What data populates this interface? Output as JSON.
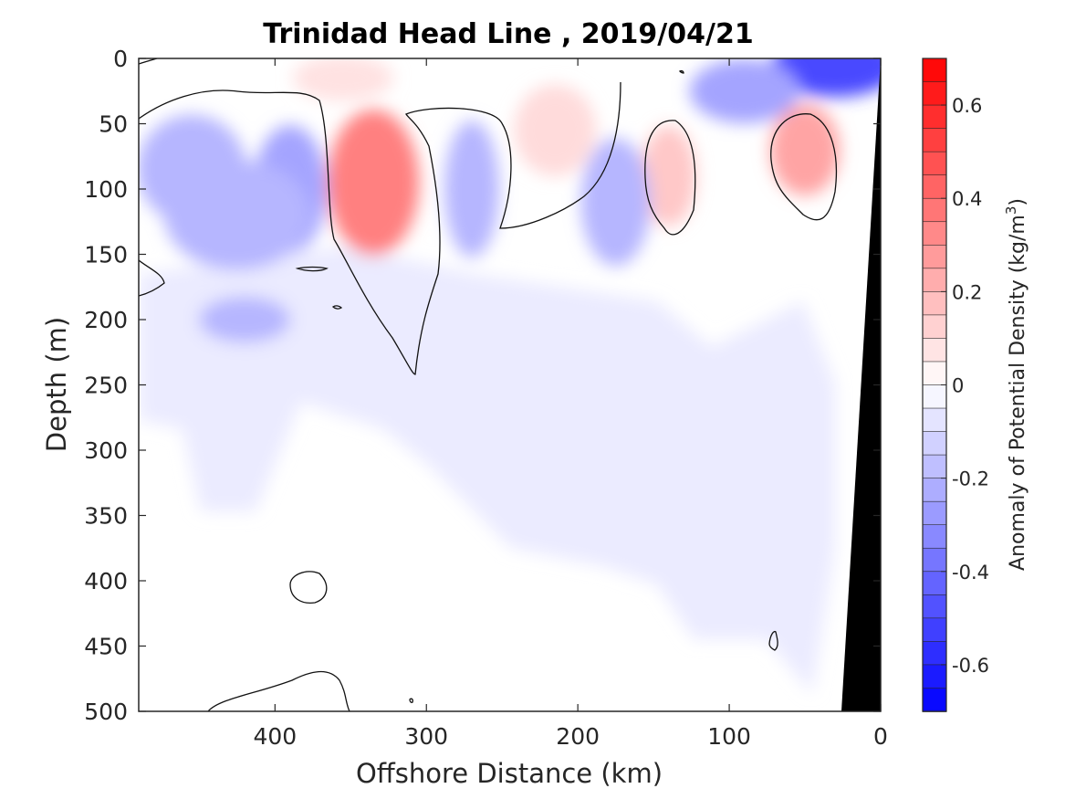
{
  "chart_data": {
    "type": "heatmap",
    "title": "Trinidad Head Line , 2019/04/21",
    "xlabel": "Offshore Distance (km)",
    "ylabel": "Depth (m)",
    "xlim": [
      490,
      0
    ],
    "ylim": [
      0,
      500
    ],
    "x_reversed": true,
    "y_reversed": true,
    "x_ticks": [
      "400",
      "300",
      "200",
      "100",
      "0"
    ],
    "x_tick_values": [
      400,
      300,
      200,
      100,
      0
    ],
    "y_ticks": [
      "0",
      "50",
      "100",
      "150",
      "200",
      "250",
      "300",
      "350",
      "400",
      "450",
      "500"
    ],
    "y_tick_values": [
      0,
      50,
      100,
      150,
      200,
      250,
      300,
      350,
      400,
      450,
      500
    ],
    "colorbar": {
      "label_main": "Anomaly of Potential Density (kg/m",
      "label_superscript": "3",
      "label_close": ")",
      "range": [
        -0.7,
        0.7
      ],
      "ticks": [
        "0.6",
        "0.4",
        "0.2",
        "0",
        "-0.2",
        "-0.4",
        "-0.6"
      ],
      "tick_values": [
        0.6,
        0.4,
        0.2,
        0,
        -0.2,
        -0.4,
        -0.6
      ],
      "levels": 28,
      "color_negative": "#0000ff",
      "color_zero": "#ffffff",
      "color_positive": "#ff0000"
    },
    "features": [
      {
        "name": "positive anomaly core",
        "x": 335,
        "depth": 95,
        "value": 0.35
      },
      {
        "name": "positive anomaly",
        "x": 215,
        "depth": 55,
        "value": 0.1
      },
      {
        "name": "positive anomaly",
        "x": 140,
        "depth": 90,
        "value": 0.15
      },
      {
        "name": "positive anomaly",
        "x": 50,
        "depth": 70,
        "value": 0.25
      },
      {
        "name": "positive anomaly",
        "x": 355,
        "depth": 15,
        "value": 0.08
      },
      {
        "name": "negative anomaly",
        "x": 390,
        "depth": 100,
        "value": -0.25
      },
      {
        "name": "negative anomaly",
        "x": 455,
        "depth": 85,
        "value": -0.2
      },
      {
        "name": "negative anomaly",
        "x": 425,
        "depth": 120,
        "value": -0.2
      },
      {
        "name": "negative anomaly",
        "x": 270,
        "depth": 100,
        "value": -0.2
      },
      {
        "name": "negative anomaly",
        "x": 175,
        "depth": 110,
        "value": -0.2
      },
      {
        "name": "negative anomaly",
        "x": 420,
        "depth": 200,
        "value": -0.2
      },
      {
        "name": "surface negative anomaly",
        "x": 30,
        "depth": 5,
        "value": -0.5
      },
      {
        "name": "surface negative anomaly",
        "x": 90,
        "depth": 25,
        "value": -0.25
      }
    ],
    "land_color": "#000000"
  }
}
